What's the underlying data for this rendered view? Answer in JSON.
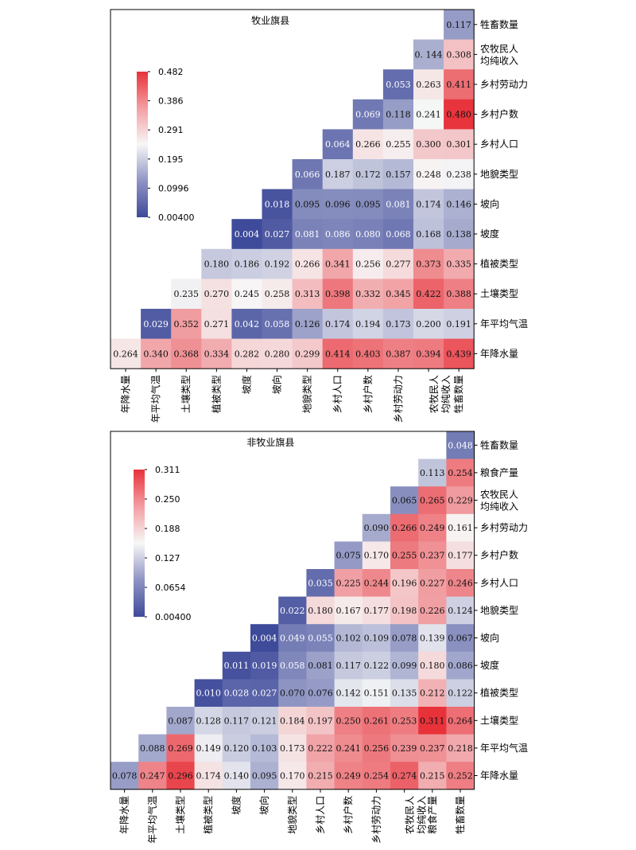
{
  "chart_data": [
    {
      "type": "heatmap",
      "title": "牧业旗县",
      "columns": [
        "年降水量",
        "年平均气温",
        "土壤类型",
        "植被类型",
        "坡度",
        "坡向",
        "地貌类型",
        "乡村人口",
        "乡村户数",
        "乡村劳动力",
        "农牧民人\n均纯收入",
        "牲畜数量"
      ],
      "rows": [
        "牲畜数量",
        "农牧民人\n均纯收入",
        "乡村劳动力",
        "乡村户数",
        "乡村人口",
        "地貌类型",
        "坡向",
        "坡度",
        "植被类型",
        "土壤类型",
        "年平均气温",
        "年降水量"
      ],
      "values": [
        [
          null,
          null,
          null,
          null,
          null,
          null,
          null,
          null,
          null,
          null,
          null,
          "0.117"
        ],
        [
          null,
          null,
          null,
          null,
          null,
          null,
          null,
          null,
          null,
          null,
          "0. 144",
          "0.308"
        ],
        [
          null,
          null,
          null,
          null,
          null,
          null,
          null,
          null,
          null,
          "0.053",
          "0.263",
          "0.411"
        ],
        [
          null,
          null,
          null,
          null,
          null,
          null,
          null,
          null,
          "0.069",
          "0.118",
          "0.241",
          "0.480"
        ],
        [
          null,
          null,
          null,
          null,
          null,
          null,
          null,
          "0.064",
          "0.266",
          "0.255",
          "0.300",
          "0.301"
        ],
        [
          null,
          null,
          null,
          null,
          null,
          null,
          "0.066",
          "0.187",
          "0.172",
          "0.157",
          "0.248",
          "0.238"
        ],
        [
          null,
          null,
          null,
          null,
          null,
          "0.018",
          "0.095",
          "0.096",
          "0.095",
          "0.081",
          "0.174",
          "0.146"
        ],
        [
          null,
          null,
          null,
          null,
          "0.004",
          "0.027",
          "0.081",
          "0.086",
          "0.080",
          "0.068",
          "0.168",
          "0.138"
        ],
        [
          null,
          null,
          null,
          "0.180",
          "0.186",
          "0.192",
          "0.266",
          "0.341",
          "0.256",
          "0.277",
          "0.373",
          "0.335"
        ],
        [
          null,
          null,
          "0.235",
          "0.270",
          "0.245",
          "0.258",
          "0.313",
          "0.398",
          "0.332",
          "0.345",
          "0.422",
          "0.388"
        ],
        [
          null,
          "0.029",
          "0.352",
          "0.271",
          "0.042",
          "0.058",
          "0.126",
          "0.174",
          "0.194",
          "0.173",
          "0.200",
          "0.191"
        ],
        [
          "0.264",
          "0.340",
          "0.368",
          "0.334",
          "0.282",
          "0.280",
          "0.299",
          "0.414",
          "0.403",
          "0.387",
          "0.394",
          "0.439"
        ]
      ],
      "colorbar": {
        "ticks": [
          "0.482",
          "0.386",
          "0.291",
          "0.195",
          "0.0996",
          "0.00400"
        ],
        "min": 0.004,
        "max": 0.482
      },
      "colors": {
        "low": "#3e4a9a",
        "mid": "#f7f7f7",
        "high": "#e8323a"
      }
    },
    {
      "type": "heatmap",
      "title": "非牧业旗县",
      "columns": [
        "年降水量",
        "年平均气温",
        "土壤类型",
        "植被类型",
        "坡度",
        "坡向",
        "地貌类型",
        "乡村人口",
        "乡村户数",
        "乡村劳动力",
        "农牧民人\n均纯收入",
        "粮食产量",
        "牲畜数量"
      ],
      "rows": [
        "牲畜数量",
        "粮食产量",
        "农牧民人\n均纯收入",
        "乡村劳动力",
        "乡村户数",
        "乡村人口",
        "地貌类型",
        "坡向",
        "坡度",
        "植被类型",
        "土壤类型",
        "年平均气温",
        "年降水量"
      ],
      "values": [
        [
          null,
          null,
          null,
          null,
          null,
          null,
          null,
          null,
          null,
          null,
          null,
          null,
          "0.048"
        ],
        [
          null,
          null,
          null,
          null,
          null,
          null,
          null,
          null,
          null,
          null,
          null,
          "0.113",
          "0.254"
        ],
        [
          null,
          null,
          null,
          null,
          null,
          null,
          null,
          null,
          null,
          null,
          "0.065",
          "0.265",
          "0.229"
        ],
        [
          null,
          null,
          null,
          null,
          null,
          null,
          null,
          null,
          null,
          "0.090",
          "0.266",
          "0.249",
          "0.161"
        ],
        [
          null,
          null,
          null,
          null,
          null,
          null,
          null,
          null,
          "0.075",
          "0.170",
          "0.255",
          "0.237",
          "0.177"
        ],
        [
          null,
          null,
          null,
          null,
          null,
          null,
          null,
          "0.035",
          "0.225",
          "0.244",
          "0.196",
          "0.227",
          "0.246"
        ],
        [
          null,
          null,
          null,
          null,
          null,
          null,
          "0.022",
          "0.180",
          "0.167",
          "0.177",
          "0.198",
          "0.226",
          "0.124"
        ],
        [
          null,
          null,
          null,
          null,
          null,
          "0.004",
          "0.049",
          "0.055",
          "0.102",
          "0.109",
          "0.078",
          "0.139",
          "0.067"
        ],
        [
          null,
          null,
          null,
          null,
          "0.011",
          "0.019",
          "0.058",
          "0.081",
          "0.117",
          "0.122",
          "0.099",
          "0.180",
          "0.086"
        ],
        [
          null,
          null,
          null,
          "0.010",
          "0.028",
          "0.027",
          "0.070",
          "0.076",
          "0.142",
          "0.151",
          "0.135",
          "0.212",
          "0.122"
        ],
        [
          null,
          null,
          "0.087",
          "0.128",
          "0.117",
          "0.121",
          "0.184",
          "0.197",
          "0.250",
          "0.261",
          "0.253",
          "0.311",
          "0.264"
        ],
        [
          null,
          "0.088",
          "0.269",
          "0.149",
          "0.120",
          "0.103",
          "0.173",
          "0.222",
          "0.241",
          "0.256",
          "0.239",
          "0.237",
          "0.218"
        ],
        [
          "0.078",
          "0.247",
          "0.296",
          "0.174",
          "0.140",
          "0.095",
          "0.170",
          "0.215",
          "0.249",
          "0.254",
          "0.274",
          "0.215",
          "0.252"
        ]
      ],
      "colorbar": {
        "ticks": [
          "0.311",
          "0.250",
          "0.188",
          "0.127",
          "0.0654",
          "0.00400"
        ],
        "min": 0.004,
        "max": 0.311
      },
      "colors": {
        "low": "#3e4a9a",
        "mid": "#f7f7f7",
        "high": "#e8323a"
      }
    }
  ]
}
